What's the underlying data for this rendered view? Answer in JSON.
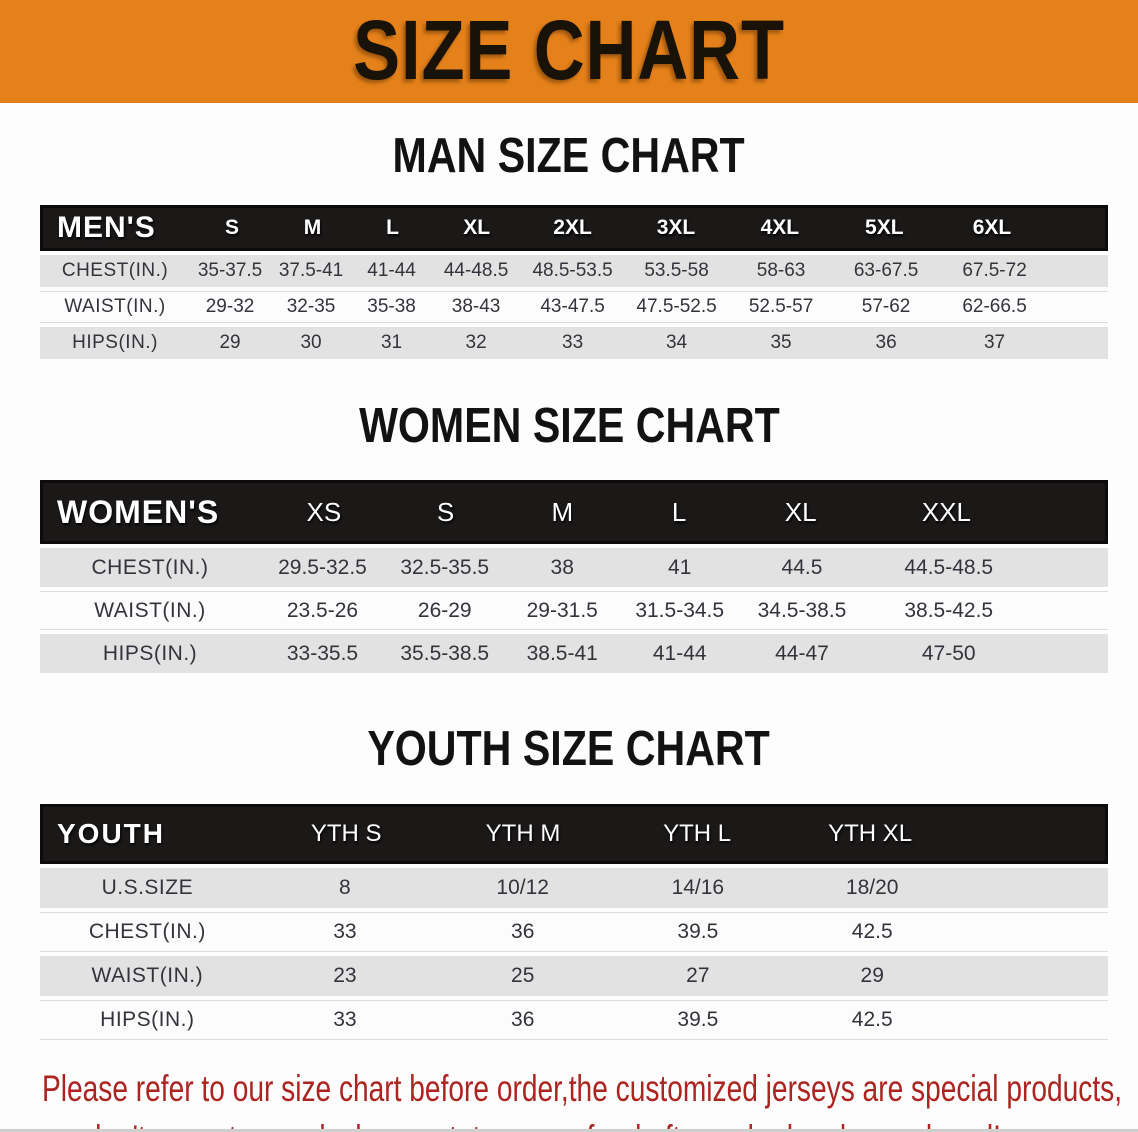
{
  "banner": {
    "title": "SIZE CHART",
    "bg_color": "#E5811A"
  },
  "colors": {
    "banner_bg": "#E5811A",
    "header_bar": "#1B1818",
    "row_gray": "#E2E2E2",
    "row_white": "#FCFCFC",
    "disclaimer_red": "#AC2420"
  },
  "tables": {
    "men": {
      "heading": "MAN SIZE CHART",
      "group_label": "MEN'S",
      "columns": [
        "S",
        "M",
        "L",
        "XL",
        "2XL",
        "3XL",
        "4XL",
        "5XL",
        "6XL"
      ],
      "rows": [
        {
          "label": "CHEST(IN.)",
          "values": [
            "35-37.5",
            "37.5-41",
            "41-44",
            "44-48.5",
            "48.5-53.5",
            "53.5-58",
            "58-63",
            "63-67.5",
            "67.5-72"
          ]
        },
        {
          "label": "WAIST(IN.)",
          "values": [
            "29-32",
            "32-35",
            "35-38",
            "38-43",
            "43-47.5",
            "47.5-52.5",
            "52.5-57",
            "57-62",
            "62-66.5"
          ]
        },
        {
          "label": "HIPS(IN.)",
          "values": [
            "29",
            "30",
            "31",
            "32",
            "33",
            "34",
            "35",
            "36",
            "37"
          ]
        }
      ]
    },
    "women": {
      "heading": "WOMEN SIZE CHART",
      "group_label": "WOMEN'S",
      "columns": [
        "XS",
        "S",
        "M",
        "L",
        "XL",
        "XXL"
      ],
      "rows": [
        {
          "label": "CHEST(IN.)",
          "values": [
            "29.5-32.5",
            "32.5-35.5",
            "38",
            "41",
            "44.5",
            "44.5-48.5"
          ]
        },
        {
          "label": "WAIST(IN.)",
          "values": [
            "23.5-26",
            "26-29",
            "29-31.5",
            "31.5-34.5",
            "34.5-38.5",
            "38.5-42.5"
          ]
        },
        {
          "label": "HIPS(IN.)",
          "values": [
            "33-35.5",
            "35.5-38.5",
            "38.5-41",
            "41-44",
            "44-47",
            "47-50"
          ]
        }
      ]
    },
    "youth": {
      "heading": "YOUTH SIZE CHART",
      "group_label": "YOUTH",
      "columns": [
        "YTH S",
        "YTH M",
        "YTH L",
        "YTH XL"
      ],
      "rows": [
        {
          "label": "U.S.SIZE",
          "values": [
            "8",
            "10/12",
            "14/16",
            "18/20"
          ]
        },
        {
          "label": "CHEST(IN.)",
          "values": [
            "33",
            "36",
            "39.5",
            "42.5"
          ]
        },
        {
          "label": "WAIST(IN.)",
          "values": [
            "23",
            "25",
            "27",
            "29"
          ]
        },
        {
          "label": "HIPS(IN.)",
          "values": [
            "33",
            "36",
            "39.5",
            "42.5"
          ]
        }
      ]
    }
  },
  "disclaimer": {
    "line1": "Please refer to our size chart before order,the customized jerseys are special products,",
    "line2": "we don't accept cancel, change, teturn or refund after order has been placed!"
  }
}
